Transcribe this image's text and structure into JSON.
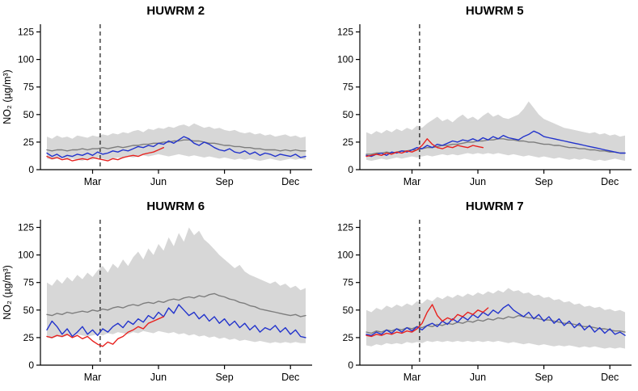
{
  "figure": {
    "background": "#ffffff"
  },
  "axes": {
    "ylabel": "NO₂  (µg/m³)",
    "ylim": [
      0,
      132
    ],
    "yticks": [
      0,
      25,
      50,
      75,
      100,
      125
    ],
    "xtick_labels": [
      "Mar",
      "Jun",
      "Sep",
      "Dec"
    ],
    "xtick_weeks": [
      9,
      22,
      35,
      48
    ],
    "vline_week": 10.5,
    "grid": "off",
    "legend": "none"
  },
  "colors": {
    "band": "#d7d7d7",
    "mean": "#7d7d7d",
    "blue": "#2233cc",
    "red": "#e8221f",
    "vline": "#000000",
    "axis": "#000000"
  },
  "chart_data": [
    {
      "type": "line",
      "title": "HUWRM 2",
      "xlabel": "",
      "ylabel": "NO₂  (µg/m³)",
      "show_ylabel": true,
      "band": {
        "upper": [
          30,
          28,
          31,
          29,
          30,
          28,
          31,
          30,
          29,
          31,
          30,
          32,
          31,
          33,
          32,
          34,
          33,
          35,
          36,
          34,
          37,
          36,
          38,
          37,
          39,
          38,
          40,
          41,
          39,
          42,
          40,
          38,
          39,
          37,
          38,
          36,
          35,
          36,
          34,
          33,
          34,
          32,
          33,
          31,
          32,
          30,
          31,
          32,
          30,
          31,
          29,
          30
        ],
        "lower": [
          10,
          9,
          10,
          11,
          9,
          10,
          9,
          8,
          10,
          9,
          11,
          10,
          9,
          10,
          11,
          10,
          12,
          11,
          12,
          13,
          12,
          13,
          14,
          13,
          12,
          13,
          14,
          13,
          12,
          13,
          12,
          11,
          12,
          11,
          10,
          11,
          10,
          9,
          10,
          9,
          10,
          9,
          8,
          9,
          10,
          9,
          8,
          9,
          10,
          9,
          10,
          9
        ]
      },
      "series": [
        {
          "name": "gray-mean-line",
          "color_key": "mean",
          "values": [
            18,
            17,
            18,
            18,
            17,
            18,
            18,
            19,
            18,
            19,
            19,
            20,
            19,
            20,
            21,
            20,
            21,
            22,
            22,
            23,
            23,
            24,
            24,
            25,
            25,
            26,
            26,
            27,
            27,
            26,
            26,
            25,
            24,
            24,
            23,
            22,
            22,
            21,
            21,
            20,
            20,
            19,
            19,
            18,
            18,
            18,
            17,
            18,
            17,
            18,
            17,
            17
          ]
        },
        {
          "name": "blue-line",
          "color_key": "blue",
          "values": [
            15,
            12,
            14,
            11,
            13,
            12,
            14,
            13,
            15,
            13,
            16,
            14,
            15,
            17,
            16,
            18,
            17,
            19,
            21,
            20,
            22,
            21,
            24,
            23,
            26,
            24,
            27,
            30,
            28,
            24,
            22,
            25,
            23,
            20,
            18,
            17,
            19,
            16,
            15,
            17,
            14,
            16,
            13,
            15,
            14,
            12,
            14,
            13,
            12,
            14,
            11,
            12
          ]
        },
        {
          "name": "red-line",
          "color_key": "red",
          "values": [
            12,
            10,
            11,
            9,
            10,
            8,
            9,
            10,
            9,
            11,
            10,
            9,
            8,
            10,
            9,
            11,
            12,
            13,
            12,
            14,
            15,
            16,
            18,
            20
          ]
        }
      ]
    },
    {
      "type": "line",
      "title": "HUWRM 5",
      "xlabel": "",
      "ylabel": "NO₂  (µg/m³)",
      "show_ylabel": false,
      "band": {
        "upper": [
          34,
          32,
          35,
          33,
          36,
          34,
          37,
          35,
          38,
          36,
          40,
          38,
          42,
          45,
          48,
          44,
          46,
          43,
          47,
          50,
          46,
          48,
          45,
          49,
          52,
          48,
          50,
          47,
          46,
          48,
          50,
          55,
          62,
          56,
          50,
          46,
          44,
          42,
          40,
          38,
          37,
          36,
          35,
          34,
          33,
          34,
          32,
          33,
          31,
          32,
          30,
          31
        ],
        "lower": [
          9,
          8,
          9,
          10,
          9,
          10,
          11,
          10,
          11,
          12,
          11,
          12,
          13,
          12,
          13,
          14,
          13,
          14,
          13,
          14,
          15,
          14,
          15,
          14,
          15,
          14,
          15,
          14,
          13,
          14,
          13,
          12,
          13,
          12,
          11,
          12,
          11,
          10,
          11,
          10,
          9,
          10,
          9,
          10,
          9,
          8,
          9,
          8,
          9,
          10,
          9,
          8
        ]
      },
      "series": [
        {
          "name": "gray-mean-line",
          "color_key": "mean",
          "values": [
            14,
            14,
            15,
            15,
            16,
            15,
            16,
            17,
            17,
            18,
            18,
            19,
            20,
            20,
            21,
            22,
            22,
            23,
            23,
            24,
            25,
            25,
            26,
            26,
            27,
            27,
            28,
            28,
            27,
            27,
            26,
            26,
            25,
            25,
            24,
            23,
            23,
            22,
            22,
            21,
            20,
            20,
            19,
            19,
            18,
            18,
            17,
            17,
            16,
            16,
            15,
            15
          ]
        },
        {
          "name": "blue-line",
          "color_key": "blue",
          "values": [
            13,
            12,
            14,
            15,
            13,
            16,
            15,
            17,
            16,
            18,
            20,
            19,
            22,
            20,
            23,
            22,
            24,
            26,
            25,
            27,
            26,
            28,
            26,
            29,
            27,
            30,
            28,
            31,
            29,
            28,
            27,
            30,
            32,
            35,
            33,
            30,
            29,
            28,
            27,
            26,
            25,
            24,
            23,
            22,
            21,
            20,
            19,
            18,
            17,
            16,
            15,
            15
          ]
        },
        {
          "name": "red-line",
          "color_key": "red",
          "values": [
            12,
            13,
            14,
            13,
            15,
            14,
            16,
            15,
            17,
            16,
            18,
            22,
            28,
            23,
            20,
            19,
            21,
            20,
            22,
            21,
            20,
            22,
            21,
            20
          ]
        }
      ]
    },
    {
      "type": "line",
      "title": "HUWRM 6",
      "xlabel": "",
      "ylabel": "NO₂  (µg/m³)",
      "show_ylabel": true,
      "band": {
        "upper": [
          75,
          72,
          78,
          74,
          80,
          76,
          82,
          78,
          84,
          80,
          86,
          90,
          84,
          92,
          88,
          96,
          90,
          98,
          103,
          96,
          106,
          100,
          110,
          104,
          116,
          108,
          120,
          112,
          125,
          118,
          122,
          114,
          110,
          105,
          100,
          96,
          92,
          88,
          91,
          85,
          82,
          80,
          78,
          76,
          74,
          76,
          72,
          74,
          70,
          72,
          68,
          70
        ],
        "lower": [
          25,
          24,
          26,
          25,
          27,
          26,
          28,
          27,
          26,
          27,
          28,
          27,
          29,
          28,
          30,
          29,
          28,
          30,
          29,
          31,
          30,
          29,
          31,
          30,
          29,
          30,
          28,
          29,
          27,
          28,
          26,
          27,
          25,
          26,
          24,
          25,
          23,
          24,
          22,
          23,
          22,
          21,
          22,
          21,
          20,
          21,
          20,
          21,
          20,
          21,
          20,
          20
        ]
      },
      "series": [
        {
          "name": "gray-mean-line",
          "color_key": "mean",
          "values": [
            46,
            45,
            47,
            46,
            48,
            47,
            48,
            49,
            48,
            50,
            49,
            51,
            50,
            52,
            53,
            52,
            54,
            55,
            54,
            56,
            57,
            56,
            58,
            57,
            59,
            60,
            59,
            61,
            62,
            61,
            63,
            62,
            64,
            65,
            63,
            62,
            60,
            59,
            57,
            56,
            54,
            53,
            51,
            50,
            49,
            48,
            47,
            46,
            45,
            46,
            44,
            45
          ]
        },
        {
          "name": "blue-line",
          "color_key": "blue",
          "values": [
            32,
            40,
            35,
            28,
            33,
            26,
            30,
            35,
            28,
            32,
            27,
            33,
            30,
            35,
            38,
            34,
            40,
            37,
            42,
            39,
            45,
            42,
            48,
            44,
            52,
            47,
            55,
            50,
            45,
            48,
            42,
            46,
            40,
            44,
            38,
            42,
            36,
            40,
            34,
            38,
            32,
            36,
            30,
            34,
            32,
            36,
            30,
            34,
            28,
            32,
            26,
            25
          ]
        },
        {
          "name": "red-line",
          "color_key": "red",
          "values": [
            26,
            25,
            27,
            26,
            28,
            25,
            27,
            24,
            26,
            22,
            19,
            17,
            21,
            19,
            24,
            26,
            30,
            32,
            35,
            33,
            38,
            40,
            42,
            44
          ]
        }
      ]
    },
    {
      "type": "line",
      "title": "HUWRM 7",
      "xlabel": "",
      "ylabel": "NO₂  (µg/m³)",
      "show_ylabel": false,
      "band": {
        "upper": [
          50,
          48,
          52,
          50,
          54,
          52,
          55,
          53,
          56,
          54,
          58,
          56,
          60,
          58,
          62,
          60,
          63,
          61,
          64,
          62,
          65,
          63,
          66,
          64,
          67,
          65,
          68,
          66,
          70,
          67,
          68,
          65,
          66,
          63,
          64,
          61,
          62,
          59,
          60,
          57,
          58,
          55,
          56,
          53,
          54,
          52,
          53,
          50,
          51,
          49,
          50,
          48
        ],
        "lower": [
          18,
          17,
          19,
          18,
          20,
          19,
          20,
          19,
          21,
          20,
          21,
          20,
          22,
          21,
          22,
          21,
          22,
          21,
          22,
          21,
          22,
          21,
          22,
          21,
          22,
          21,
          22,
          21,
          20,
          21,
          20,
          19,
          20,
          19,
          18,
          19,
          18,
          17,
          18,
          17,
          18,
          17,
          16,
          17,
          16,
          17,
          16,
          15,
          16,
          15,
          16,
          15
        ]
      },
      "series": [
        {
          "name": "gray-mean-line",
          "color_key": "mean",
          "values": [
            30,
            29,
            31,
            30,
            32,
            31,
            33,
            32,
            34,
            33,
            35,
            34,
            36,
            35,
            37,
            36,
            38,
            37,
            39,
            38,
            40,
            39,
            41,
            40,
            42,
            41,
            43,
            42,
            44,
            43,
            45,
            44,
            43,
            43,
            42,
            41,
            41,
            40,
            39,
            38,
            38,
            37,
            36,
            35,
            35,
            34,
            33,
            33,
            32,
            31,
            31,
            30
          ]
        },
        {
          "name": "blue-line",
          "color_key": "blue",
          "values": [
            28,
            27,
            30,
            28,
            32,
            29,
            33,
            30,
            34,
            31,
            35,
            32,
            36,
            38,
            35,
            40,
            37,
            42,
            39,
            44,
            41,
            46,
            43,
            48,
            45,
            50,
            47,
            52,
            55,
            50,
            47,
            44,
            48,
            42,
            46,
            40,
            44,
            38,
            42,
            36,
            40,
            34,
            38,
            32,
            36,
            30,
            34,
            29,
            33,
            28,
            30,
            27
          ]
        },
        {
          "name": "red-line",
          "color_key": "red",
          "values": [
            27,
            26,
            28,
            27,
            29,
            28,
            30,
            29,
            31,
            30,
            33,
            38,
            48,
            55,
            45,
            40,
            43,
            41,
            46,
            44,
            48,
            46,
            50,
            48,
            52
          ]
        }
      ]
    }
  ]
}
